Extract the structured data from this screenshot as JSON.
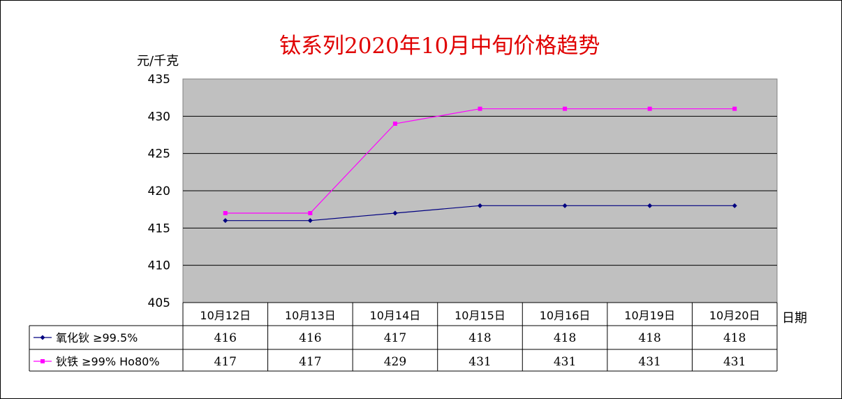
{
  "chart_data": {
    "type": "line",
    "title": "钛系列2020年10月中旬价格趋势",
    "ylabel": "元/千克",
    "xlabel": "日期",
    "ylim": [
      405,
      435
    ],
    "yticks": [
      405,
      410,
      415,
      420,
      425,
      430,
      435
    ],
    "categories": [
      "10月12日",
      "10月13日",
      "10月14日",
      "10月15日",
      "10月16日",
      "10月19日",
      "10月20日"
    ],
    "series": [
      {
        "name": "氧化钬 ≥99.5%",
        "values": [
          416,
          416,
          417,
          418,
          418,
          418,
          418
        ],
        "color": "#000080",
        "marker": "diamond"
      },
      {
        "name": "钬铁 ≥99% Ho80%",
        "values": [
          417,
          417,
          429,
          431,
          431,
          431,
          431
        ],
        "color": "#ff00ff",
        "marker": "square"
      }
    ],
    "plot_background": "#c0c0c0",
    "grid": true,
    "data_table": true
  }
}
